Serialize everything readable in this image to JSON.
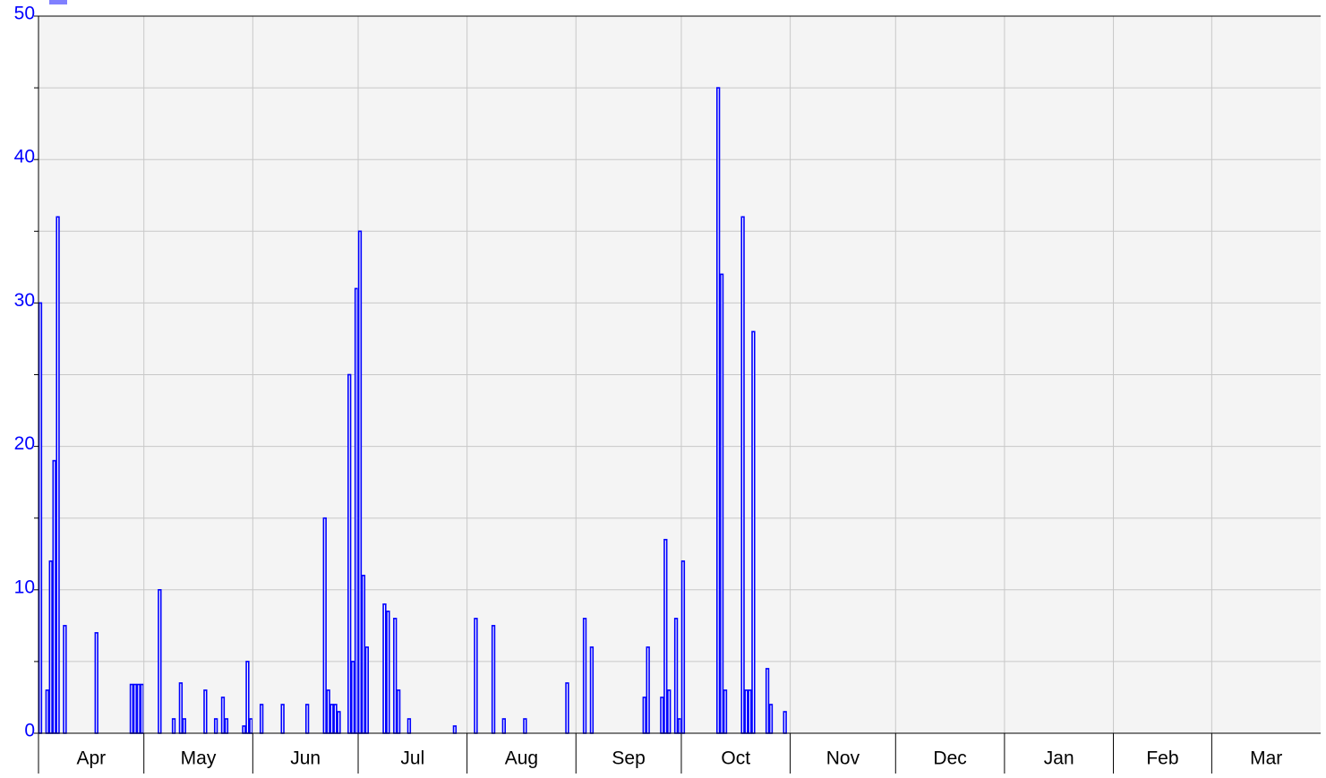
{
  "chart_data": {
    "type": "bar",
    "color": "#0000ff",
    "categories": [
      "Apr",
      "May",
      "Jun",
      "Jul",
      "Aug",
      "Sep",
      "Oct",
      "Nov",
      "Dec",
      "Jan",
      "Feb",
      "Mar"
    ],
    "daily_values": [
      [
        30,
        0,
        3,
        12,
        19,
        36,
        0,
        7.5,
        0,
        0,
        0,
        0,
        0,
        0,
        0,
        0,
        7,
        0,
        0,
        0,
        0,
        0,
        0,
        0,
        0,
        0,
        3.4,
        3.4,
        3.4,
        3.4
      ],
      [
        0,
        0,
        0,
        0,
        10,
        0,
        0,
        0,
        1,
        0,
        3.5,
        1,
        0,
        0,
        0,
        0,
        0,
        3,
        0,
        0,
        1,
        0,
        2.5,
        1,
        0,
        0,
        0,
        0,
        0.5,
        5,
        1
      ],
      [
        0,
        0,
        2,
        0,
        0,
        0,
        0,
        0,
        2,
        0,
        0,
        0,
        0,
        0,
        0,
        2,
        0,
        0,
        0,
        0,
        15,
        3,
        2,
        2,
        1.5,
        0,
        0,
        25,
        5,
        31
      ],
      [
        35,
        11,
        6,
        0,
        0,
        0,
        0,
        9,
        8.5,
        0,
        8,
        3,
        0,
        0,
        1,
        0,
        0,
        0,
        0,
        0,
        0,
        0,
        0,
        0,
        0,
        0,
        0,
        0.5,
        0,
        0,
        0
      ],
      [
        0,
        0,
        8,
        0,
        0,
        0,
        0,
        7.5,
        0,
        0,
        1,
        0,
        0,
        0,
        0,
        0,
        1,
        0,
        0,
        0,
        0,
        0,
        0,
        0,
        0,
        0,
        0,
        0,
        3.5,
        0,
        0
      ],
      [
        0,
        0,
        8,
        0,
        6,
        0,
        0,
        0,
        0,
        0,
        0,
        0,
        0,
        0,
        0,
        0,
        0,
        0,
        0,
        2.5,
        6,
        0,
        0,
        0,
        2.5,
        13.5,
        3,
        0,
        8,
        1
      ],
      [
        12,
        0,
        0,
        0,
        0,
        0,
        0,
        0,
        0,
        0,
        45,
        32,
        3,
        0,
        0,
        0,
        0,
        36,
        3,
        3,
        28,
        0,
        0,
        0,
        4.5,
        2,
        0,
        0,
        0,
        1.5,
        0
      ],
      [
        null,
        null,
        null,
        null,
        null,
        null,
        null,
        null,
        null,
        null,
        null,
        null,
        null,
        null,
        null,
        null,
        null,
        null,
        null,
        null,
        null,
        null,
        null,
        null,
        null,
        null,
        null,
        null,
        null,
        null
      ],
      [
        null,
        null,
        null,
        null,
        null,
        null,
        null,
        null,
        null,
        null,
        null,
        null,
        null,
        null,
        null,
        null,
        null,
        null,
        null,
        null,
        null,
        null,
        null,
        null,
        null,
        null,
        null,
        null,
        null,
        null,
        null
      ],
      [
        null,
        null,
        null,
        null,
        null,
        null,
        null,
        null,
        null,
        null,
        null,
        null,
        null,
        null,
        null,
        null,
        null,
        null,
        null,
        null,
        null,
        null,
        null,
        null,
        null,
        null,
        null,
        null,
        null,
        null,
        null
      ],
      [
        null,
        null,
        null,
        null,
        null,
        null,
        null,
        null,
        null,
        null,
        null,
        null,
        null,
        null,
        null,
        null,
        null,
        null,
        null,
        null,
        null,
        null,
        null,
        null,
        null,
        null,
        null,
        null
      ],
      [
        null,
        null,
        null,
        null,
        null,
        null,
        null,
        null,
        null,
        null,
        null,
        null,
        null,
        null,
        null,
        null,
        null,
        null,
        null,
        null,
        null,
        null,
        null,
        null,
        null,
        null,
        null,
        null,
        null,
        null,
        null
      ]
    ],
    "ylim": [
      0,
      50
    ],
    "yticks": [
      0,
      10,
      20,
      30,
      40,
      50
    ],
    "minor_yticks": [
      5,
      15,
      25,
      35,
      45
    ],
    "grid": true
  }
}
